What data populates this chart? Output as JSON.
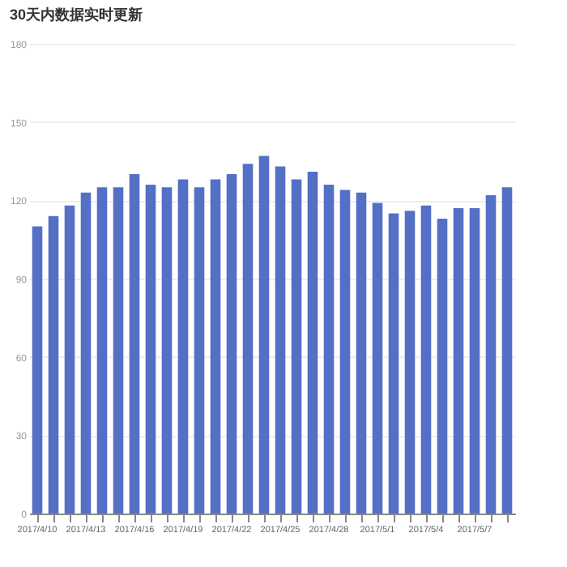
{
  "chart_data": {
    "type": "bar",
    "title": "30天内数据实时更新",
    "categories": [
      "2017/4/10",
      null,
      null,
      "2017/4/13",
      null,
      null,
      "2017/4/16",
      null,
      null,
      "2017/4/19",
      null,
      null,
      "2017/4/22",
      null,
      null,
      "2017/4/25",
      null,
      null,
      "2017/4/28",
      null,
      null,
      "2017/5/1",
      null,
      null,
      "2017/5/4",
      null,
      null,
      "2017/5/7",
      null,
      null
    ],
    "values": [
      110,
      114,
      118,
      123,
      125,
      125,
      130,
      126,
      125,
      128,
      125,
      128,
      130,
      134,
      137,
      133,
      128,
      131,
      126,
      124,
      123,
      119,
      115,
      116,
      118,
      113,
      117,
      117,
      122,
      125
    ],
    "color": "#5470c6",
    "ylim": [
      0,
      180
    ],
    "yticks": [
      0,
      30,
      60,
      90,
      120,
      150,
      180
    ],
    "grid": "y"
  }
}
